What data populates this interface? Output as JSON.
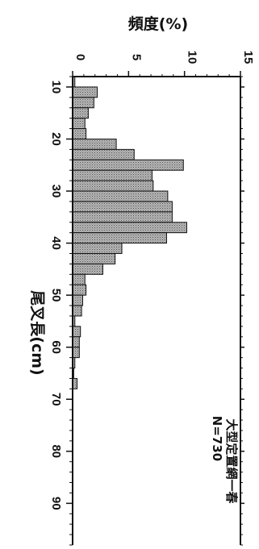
{
  "chart_data": {
    "type": "bar",
    "orientation": "rotated-90",
    "title": "",
    "xlabel": "尾叉長(cm)",
    "ylabel": "頻度(%)",
    "annotation": {
      "line1": "大型定置網一春",
      "line2": "N=730"
    },
    "xlim": [
      8,
      98
    ],
    "ylim": [
      0,
      15
    ],
    "x_ticks": [
      "10",
      "20",
      "30",
      "40",
      "50",
      "60",
      "70",
      "80",
      "90"
    ],
    "y_ticks": [
      "0",
      "5",
      "10",
      "15"
    ],
    "bin_width_cm": 2,
    "x": [
      8,
      10,
      12,
      14,
      16,
      18,
      20,
      22,
      24,
      26,
      28,
      30,
      32,
      34,
      36,
      38,
      40,
      42,
      44,
      46,
      48,
      50,
      52,
      54,
      56,
      58,
      60,
      62,
      64,
      66
    ],
    "values": [
      0.2,
      2.2,
      1.9,
      1.4,
      1.1,
      1.2,
      3.9,
      5.5,
      9.9,
      7.1,
      7.2,
      8.5,
      8.9,
      8.9,
      10.2,
      8.4,
      4.4,
      3.8,
      2.7,
      1.1,
      1.2,
      0.9,
      0.8,
      0.2,
      0.7,
      0.6,
      0.6,
      0.2,
      0.1,
      0.4
    ],
    "bar_color": "#b5b5b5",
    "grid": false
  }
}
